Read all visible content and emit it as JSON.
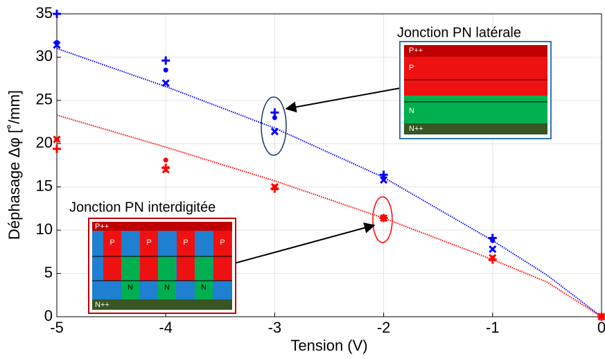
{
  "chart_data": {
    "type": "scatter",
    "xlabel": "Tension (V)",
    "ylabel": "Déphasage Δφ [˚/mm]",
    "xlim": [
      -5,
      0
    ],
    "xticks": [
      -5,
      -4,
      -3,
      -2,
      -1,
      0
    ],
    "ylim": [
      0,
      35
    ],
    "yticks": [
      0,
      5,
      10,
      15,
      20,
      25,
      30,
      35
    ],
    "grid": true,
    "series": [
      {
        "color": "#0000ff",
        "marker": "+",
        "x": [
          -5,
          -4,
          -3,
          -2,
          -1,
          0
        ],
        "values": [
          35,
          29.6,
          23.6,
          16.4,
          9.1,
          0
        ]
      },
      {
        "color": "#0000ff",
        "marker": "dot",
        "x": [
          -5,
          -4,
          -3,
          -2,
          -1,
          0
        ],
        "values": [
          31.7,
          28.5,
          23.0,
          16.0,
          8.8,
          0
        ]
      },
      {
        "color": "#0000ff",
        "marker": "x",
        "x": [
          -5,
          -4,
          -3,
          -2,
          -1,
          0
        ],
        "values": [
          31.4,
          27.0,
          21.4,
          15.8,
          7.8,
          0
        ]
      },
      {
        "color": "#0000ff",
        "marker": "dotted-line",
        "x": [
          -5,
          -4,
          -3,
          -2,
          -1,
          -0.5,
          0
        ],
        "values": [
          31.0,
          26.6,
          21.8,
          16.1,
          8.8,
          4.8,
          0
        ]
      },
      {
        "color": "#ff0000",
        "marker": "+",
        "x": [
          -5,
          -4,
          -3,
          -2,
          -1,
          0
        ],
        "values": [
          19.4,
          17.2,
          14.8,
          11.4,
          6.6,
          0
        ]
      },
      {
        "color": "#ff0000",
        "marker": "dot",
        "x": [
          -5,
          -4,
          -3,
          -2,
          -1,
          0
        ],
        "values": [
          20.5,
          18.1,
          15.0,
          11.5,
          6.7,
          0
        ]
      },
      {
        "color": "#ff0000",
        "marker": "x",
        "x": [
          -5,
          -4,
          -3,
          -2,
          -1,
          0
        ],
        "values": [
          20.5,
          17.0,
          15.0,
          11.4,
          6.8,
          0
        ]
      },
      {
        "color": "#ff0000",
        "marker": "dotted-line",
        "x": [
          -5,
          -4,
          -3,
          -2,
          -1,
          -0.5,
          0
        ],
        "values": [
          23.3,
          19.6,
          15.7,
          11.4,
          6.6,
          4.0,
          0
        ]
      }
    ],
    "insets": [
      {
        "title": "Jonction PN latérale",
        "border": "#2e75b6",
        "top": "P++",
        "p": [
          "P"
        ],
        "n": [
          "N"
        ],
        "bottom": "N++"
      },
      {
        "title": "Jonction PN interdigitée",
        "border": "#c00000",
        "top": "P++",
        "p": [
          "P",
          "P",
          "P",
          "P"
        ],
        "n": [
          "N",
          "N",
          "N"
        ],
        "bottom": "N++"
      }
    ]
  }
}
